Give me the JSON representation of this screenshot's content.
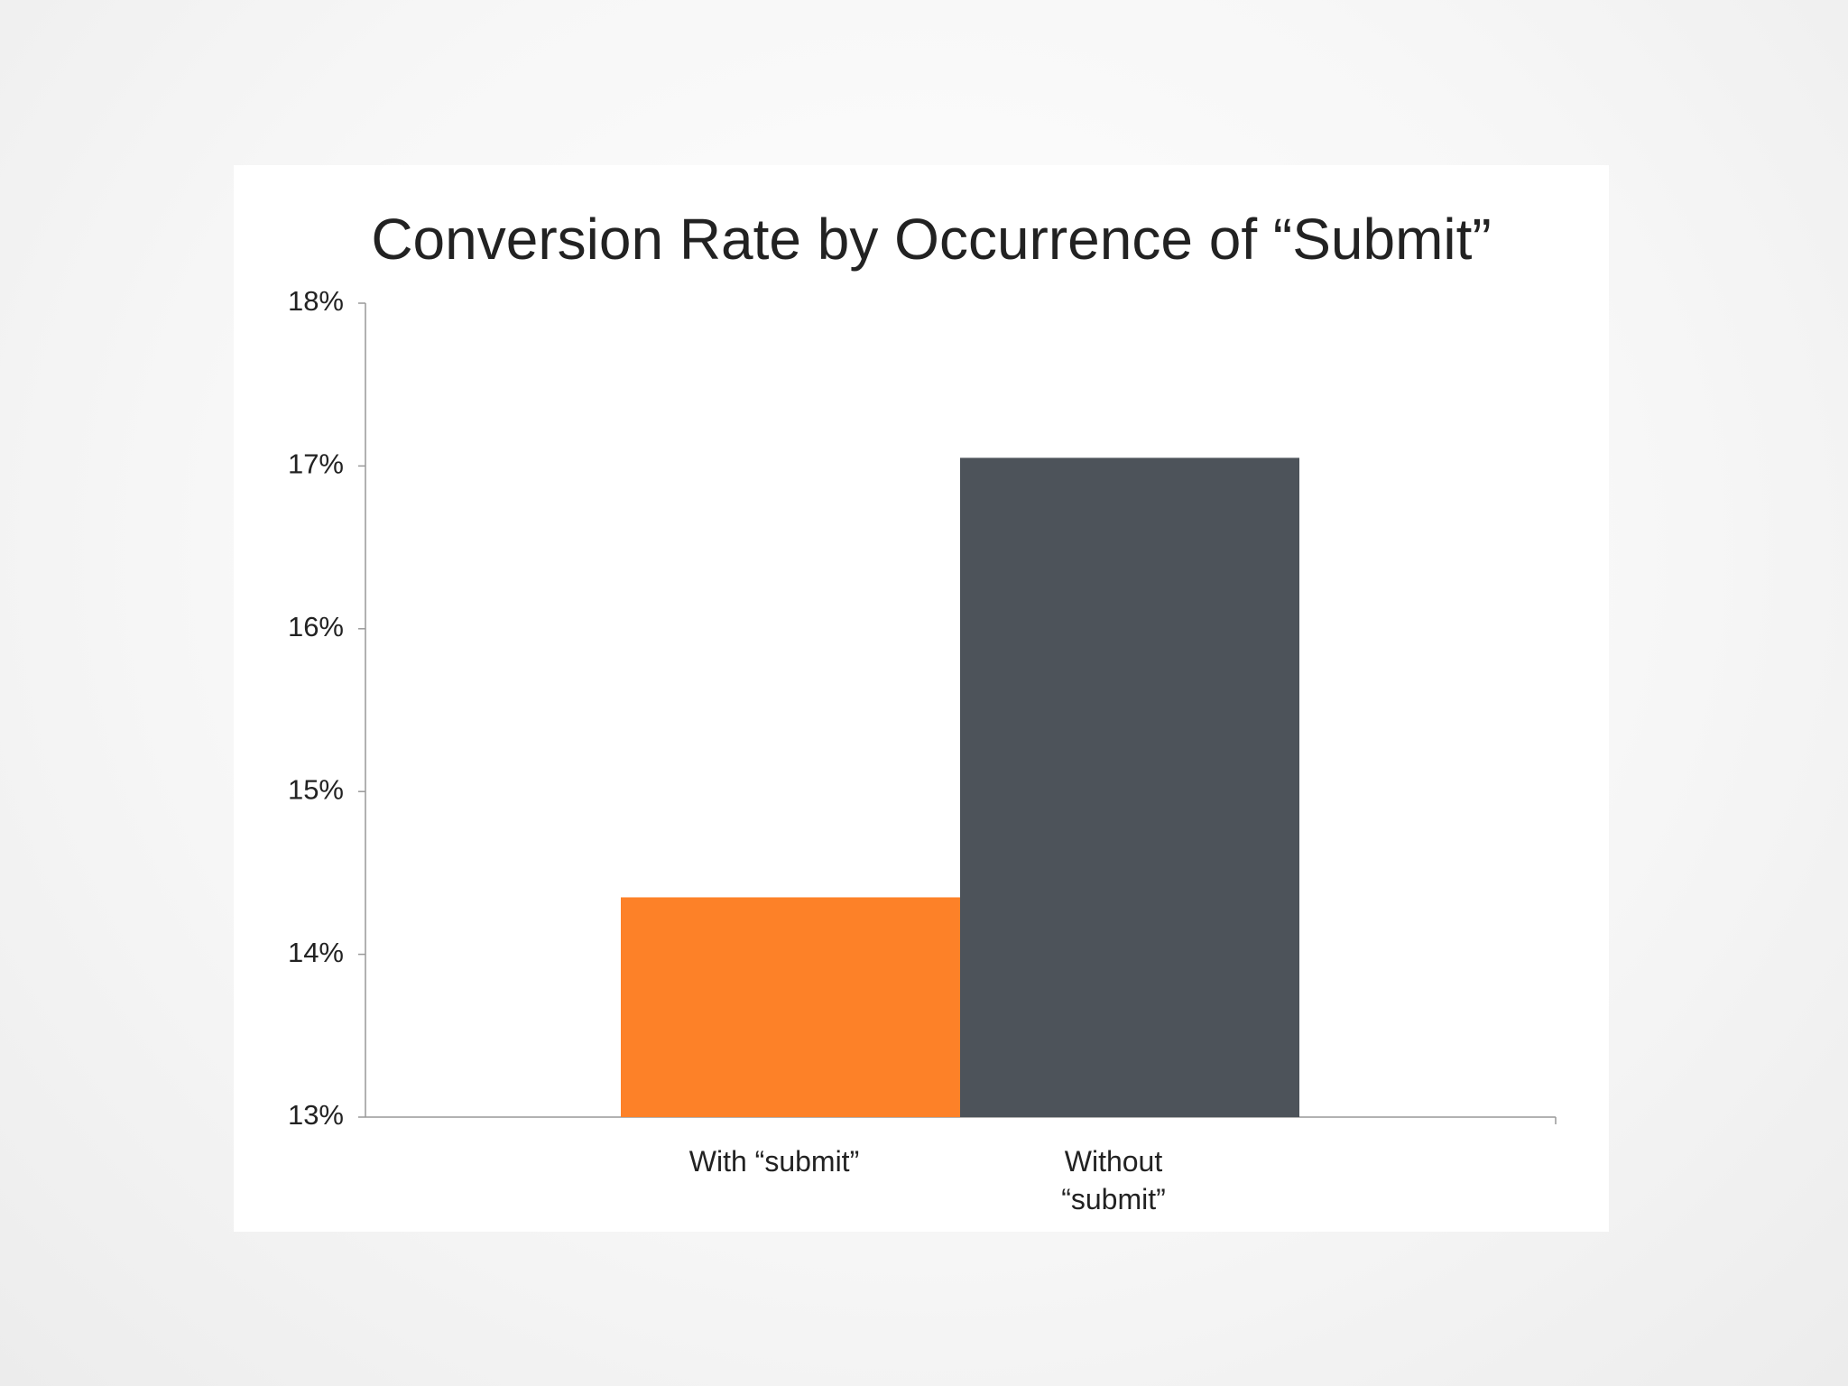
{
  "chart_data": {
    "type": "bar",
    "title": "Conversion Rate by Occurrence of “Submit”",
    "categories": [
      "With “submit”",
      "Without “submit”"
    ],
    "values": [
      14.35,
      17.05
    ],
    "colors": [
      "#fd8128",
      "#4d535a"
    ],
    "ylim": [
      13,
      18
    ],
    "yticks": [
      {
        "value": 13,
        "label": "13%"
      },
      {
        "value": 14,
        "label": "14%"
      },
      {
        "value": 15,
        "label": "15%"
      },
      {
        "value": 16,
        "label": "16%"
      },
      {
        "value": 17,
        "label": "17%"
      },
      {
        "value": 18,
        "label": "18%"
      }
    ],
    "grid": false
  }
}
